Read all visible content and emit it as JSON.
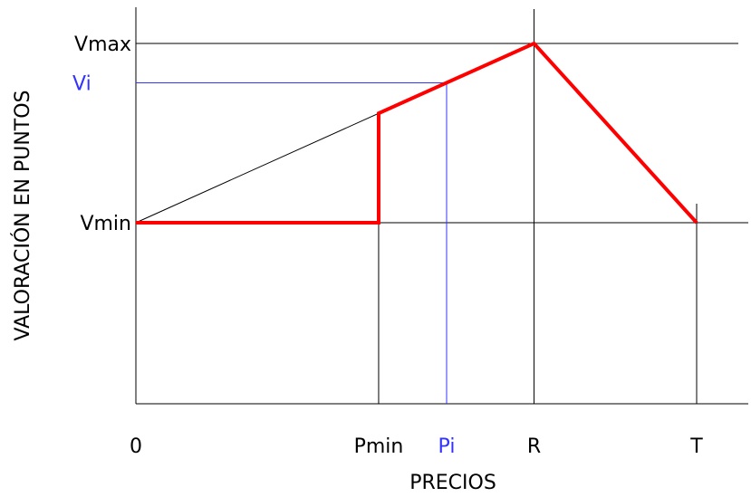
{
  "chart_data": {
    "type": "line",
    "xlabel": "PRECIOS",
    "ylabel": "VALORACIÓN EN PUNTOS",
    "x_ticks": [
      {
        "label": "0",
        "x": 0
      },
      {
        "label": "Pmin",
        "x": 100
      },
      {
        "label": "Pi",
        "x": 128
      },
      {
        "label": "R",
        "x": 164
      },
      {
        "label": "T",
        "x": 231
      }
    ],
    "y_ticks": [
      {
        "label": "Vmin",
        "y": 0
      },
      {
        "label": "Vi",
        "y": 78
      },
      {
        "label": "Vmax",
        "y": 100
      }
    ],
    "series": [
      {
        "color": "#ff0000",
        "points": [
          [
            0,
            0
          ],
          [
            100,
            0
          ],
          [
            100,
            61
          ],
          [
            164,
            100
          ],
          [
            231,
            0
          ]
        ]
      }
    ],
    "reference_lines": [
      {
        "color": "#000000",
        "points": [
          [
            0,
            0
          ],
          [
            100,
            61
          ]
        ]
      },
      {
        "color": "#3333ff",
        "points": [
          [
            0,
            78
          ],
          [
            128,
            78
          ],
          [
            128,
            -102
          ]
        ]
      }
    ],
    "xlim": [
      0,
      231
    ],
    "ylim": [
      -102,
      100
    ],
    "colors": {
      "series": "#ff0000",
      "highlight": "#3333ff",
      "axis": "#000000"
    }
  }
}
